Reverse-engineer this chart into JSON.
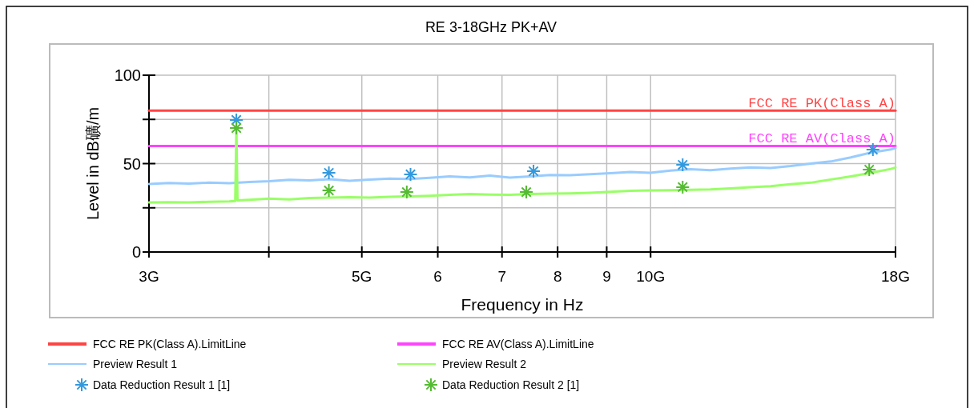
{
  "chart_data": {
    "type": "line",
    "title": "RE 3-18GHz PK+AV",
    "xlabel": "Frequency in Hz",
    "ylabel": "Level in dB礦/m",
    "log": "x",
    "grid": true,
    "legend": "bottom",
    "xlim": [
      3,
      18
    ],
    "xticks": [
      {
        "value": 3,
        "label": "3G"
      },
      {
        "value": 4,
        "label": null
      },
      {
        "value": 5,
        "label": "5G"
      },
      6,
      7,
      8,
      9,
      {
        "value": 10,
        "label": "10G"
      },
      {
        "value": 18,
        "label": "18G"
      }
    ],
    "ylim": [
      0,
      100
    ],
    "yticks": [
      0,
      {
        "value": 25,
        "label": null
      },
      50,
      {
        "value": 75,
        "label": null
      },
      100
    ],
    "annotations": [
      {
        "text": "FCC RE PK(Class A)",
        "x": 18,
        "y": 80
      },
      {
        "text": "FCC RE AV(Class A)",
        "x": 18,
        "y": 60
      }
    ],
    "series": [
      {
        "name": "FCC RE PK(Class A).LimitLine",
        "color": "#ff4444",
        "x": [
          3,
          18
        ],
        "values": [
          80,
          80
        ]
      },
      {
        "name": "FCC RE AV(Class A).LimitLine",
        "color": "#ff44ff",
        "x": [
          3,
          18
        ],
        "values": [
          60,
          60
        ]
      },
      {
        "name": "Preview Result 1",
        "color": "#99ccff",
        "x": [
          3.0,
          3.148,
          3.303,
          3.466,
          3.637,
          3.816,
          4.004,
          4.202,
          4.409,
          4.626,
          4.854,
          5.094,
          5.345,
          5.608,
          5.885,
          6.175,
          6.48,
          6.799,
          7.134,
          7.486,
          7.855,
          8.243,
          8.649,
          9.076,
          9.523,
          9.993,
          10.486,
          11.003,
          11.545,
          12.114,
          12.712,
          13.338,
          13.996,
          14.686,
          15.41,
          16.17,
          16.967,
          17.804,
          18.0
        ],
        "values": [
          38.5,
          39.0,
          38.7,
          39.2,
          38.9,
          39.6,
          40.0,
          40.8,
          40.5,
          41.2,
          40.3,
          40.9,
          41.5,
          41.3,
          42.0,
          42.8,
          42.2,
          43.2,
          42.1,
          42.8,
          43.6,
          43.4,
          44.0,
          44.6,
          45.2,
          44.8,
          46.0,
          46.8,
          46.3,
          47.2,
          47.8,
          47.5,
          48.6,
          50.0,
          51.2,
          53.5,
          56.2,
          58.0,
          58.8
        ]
      },
      {
        "name": "Preview Result 2",
        "color": "#99ff66",
        "x": [
          3.0,
          3.148,
          3.303,
          3.466,
          3.637,
          3.69,
          3.7,
          3.71,
          3.816,
          4.004,
          4.202,
          4.409,
          4.626,
          4.854,
          5.094,
          5.345,
          5.608,
          5.885,
          6.175,
          6.48,
          6.799,
          7.134,
          7.486,
          7.855,
          8.243,
          8.649,
          9.076,
          9.523,
          9.993,
          10.486,
          11.003,
          11.545,
          12.114,
          12.712,
          13.338,
          13.996,
          14.686,
          15.41,
          16.17,
          16.967,
          17.804,
          18.0
        ],
        "values": [
          28.0,
          28.2,
          28.1,
          28.4,
          28.6,
          28.8,
          71.0,
          29.2,
          29.5,
          30.2,
          29.8,
          30.5,
          30.8,
          31.0,
          30.8,
          31.2,
          31.5,
          31.8,
          32.3,
          32.8,
          32.5,
          32.4,
          32.8,
          33.0,
          33.2,
          33.5,
          34.0,
          34.6,
          34.8,
          35.0,
          35.2,
          35.4,
          36.0,
          36.6,
          37.2,
          38.3,
          39.2,
          41.0,
          42.8,
          44.8,
          47.0,
          47.8
        ]
      },
      {
        "name": "Data Reduction Result 1 [1]",
        "type": "scatter",
        "marker": "cross",
        "color": "#3399dd",
        "x": [
          3.7,
          4.62,
          5.62,
          7.55,
          10.8,
          17.05
        ],
        "values": [
          74.7,
          44.8,
          43.9,
          45.7,
          49.3,
          57.9
        ]
      },
      {
        "name": "Data Reduction Result 2 [1]",
        "type": "scatter",
        "marker": "cross",
        "color": "#55bb33",
        "x": [
          3.7,
          4.62,
          5.57,
          7.42,
          10.8,
          16.9
        ],
        "values": [
          70.1,
          34.8,
          33.9,
          33.9,
          36.7,
          46.6
        ]
      }
    ]
  }
}
